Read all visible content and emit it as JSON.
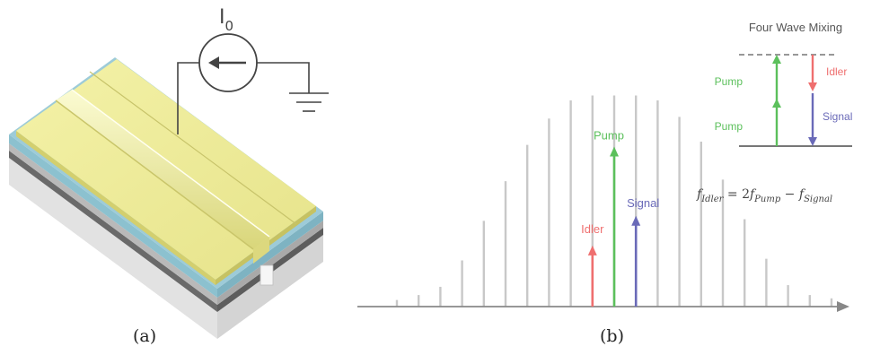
{
  "panel_a": {
    "current_label_main": "I",
    "current_label_sub": "0",
    "caption": "(a)"
  },
  "panel_b": {
    "caption": "(b)",
    "spectrum": {
      "line_heights": [
        0.04,
        0.07,
        0.12,
        0.28,
        0.52,
        0.76,
        0.98,
        1.14,
        1.25,
        1.28,
        1.28,
        1.28,
        1.25,
        1.15,
        1.0,
        0.77,
        0.53,
        0.29,
        0.13,
        0.07,
        0.05
      ],
      "idler_index": 9,
      "pump_index": 10,
      "signal_index": 11,
      "idler_value": 0.37,
      "pump_value": 0.97,
      "signal_value": 0.55
    },
    "labels": {
      "pump": "Pump",
      "signal": "Signal",
      "idler": "Idler"
    },
    "inset": {
      "title": "Four Wave Mixing",
      "pump_upper": "Pump",
      "pump_lower": "Pump",
      "idler": "Idler",
      "signal": "Signal",
      "equation_f": "f",
      "equation_idler_sub": "Idler",
      "equation_mid": " = 2",
      "equation_f2": "f",
      "equation_pump_sub": "Pump",
      "equation_minus": " − ",
      "equation_f3": "f",
      "equation_signal_sub": "Signal"
    },
    "colors": {
      "pump": "#5cc05c",
      "signal": "#6a6ab8",
      "idler": "#ef6f6f",
      "spectrum_line": "#c8c8c8",
      "axis": "#888888"
    }
  }
}
